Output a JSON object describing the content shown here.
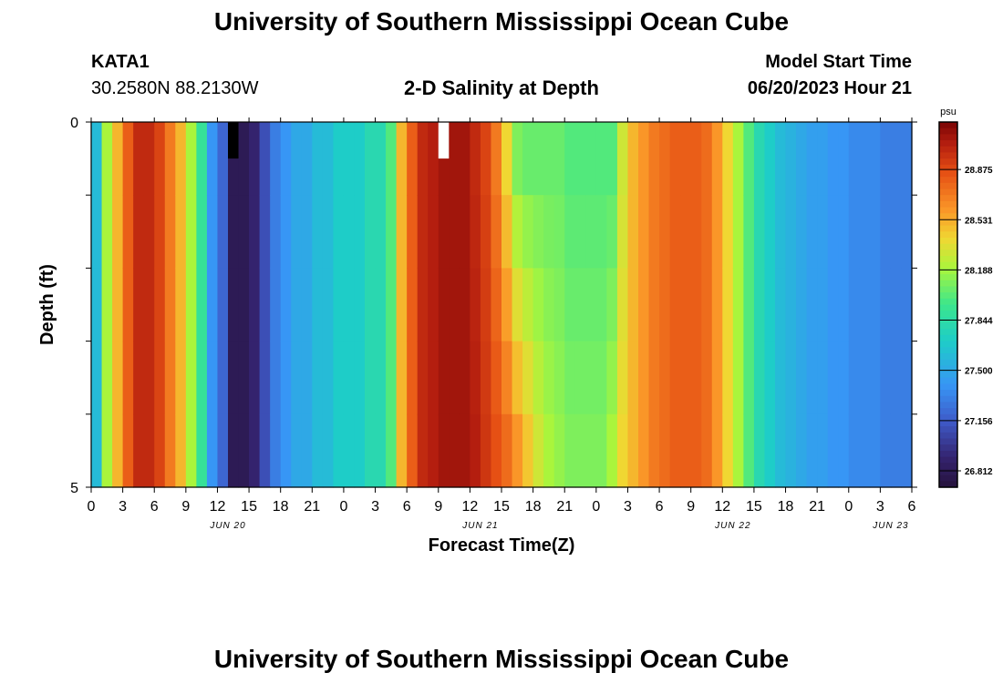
{
  "page": {
    "title": "University of Southern Mississippi Ocean Cube",
    "bottom_title": "University of Southern Mississippi Ocean Cube",
    "station_name": "KATA1",
    "station_coords": "30.2580N  88.2130W",
    "subtitle": "2-D Salinity at Depth",
    "model_start_label": "Model Start Time",
    "model_start_value": "06/20/2023 Hour 21"
  },
  "chart_data": {
    "type": "heatmap",
    "title": "2-D Salinity at Depth",
    "xlabel": "Forecast Time(Z)",
    "ylabel": "Depth (ft)",
    "colorbar_unit": "psu",
    "colorbar_ticks": [
      26.812,
      27.156,
      27.5,
      27.844,
      28.188,
      28.531,
      28.875
    ],
    "color_range": [
      26.7,
      29.2
    ],
    "y_ticks": [
      "0",
      "5"
    ],
    "ylim": [
      0,
      5
    ],
    "depth_levels": [
      0,
      1,
      2,
      3,
      4,
      5
    ],
    "x_tick_labels": [
      "0",
      "3",
      "6",
      "9",
      "12",
      "15",
      "18",
      "21",
      "0",
      "3",
      "6",
      "9",
      "12",
      "15",
      "18",
      "21",
      "0",
      "3",
      "6",
      "9",
      "12",
      "15",
      "18",
      "21",
      "0",
      "3",
      "6"
    ],
    "date_labels": [
      {
        "label": "JUN 20",
        "hour_index": 13
      },
      {
        "label": "JUN 21",
        "hour_index": 37
      },
      {
        "label": "JUN 22",
        "hour_index": 61
      },
      {
        "label": "JUN 23",
        "hour_index": 76
      }
    ],
    "x_hours_total": 78,
    "salinity_surface": [
      27.6,
      28.2,
      28.5,
      28.8,
      29.0,
      29.0,
      28.9,
      28.7,
      28.5,
      28.2,
      27.9,
      27.4,
      27.2,
      26.8,
      26.8,
      26.9,
      27.1,
      27.3,
      27.4,
      27.5,
      27.5,
      27.6,
      27.6,
      27.7,
      27.7,
      27.7,
      27.8,
      27.8,
      28.0,
      28.5,
      28.8,
      29.0,
      29.05,
      29.1,
      29.1,
      29.1,
      29.0,
      28.9,
      28.7,
      28.4,
      28.1,
      28.05,
      28.05,
      28.05,
      28.05,
      28.0,
      28.0,
      28.0,
      28.0,
      28.0,
      28.3,
      28.5,
      28.6,
      28.7,
      28.75,
      28.8,
      28.8,
      28.8,
      28.75,
      28.6,
      28.4,
      28.2,
      28.0,
      27.8,
      27.7,
      27.6,
      27.55,
      27.5,
      27.45,
      27.45,
      27.4,
      27.4,
      27.35,
      27.35,
      27.35,
      27.3,
      27.3,
      27.3
    ],
    "salinity_deep": [
      27.6,
      28.2,
      28.5,
      28.8,
      29.0,
      29.0,
      28.9,
      28.7,
      28.5,
      28.2,
      27.9,
      27.4,
      27.2,
      26.8,
      26.8,
      26.9,
      27.1,
      27.3,
      27.4,
      27.5,
      27.5,
      27.6,
      27.6,
      27.7,
      27.7,
      27.7,
      27.8,
      27.8,
      28.0,
      28.5,
      28.8,
      29.0,
      29.05,
      29.1,
      29.1,
      29.1,
      29.05,
      28.95,
      28.85,
      28.75,
      28.6,
      28.45,
      28.3,
      28.2,
      28.15,
      28.1,
      28.1,
      28.1,
      28.1,
      28.2,
      28.4,
      28.5,
      28.6,
      28.7,
      28.75,
      28.8,
      28.8,
      28.8,
      28.75,
      28.6,
      28.4,
      28.2,
      28.0,
      27.8,
      27.7,
      27.6,
      27.55,
      27.5,
      27.45,
      27.45,
      27.4,
      27.4,
      27.35,
      27.35,
      27.35,
      27.3,
      27.3,
      27.3
    ],
    "markers": [
      {
        "hour_index": 13,
        "color": "#000000"
      },
      {
        "hour_index": 33,
        "color": "#ffffff"
      }
    ]
  }
}
